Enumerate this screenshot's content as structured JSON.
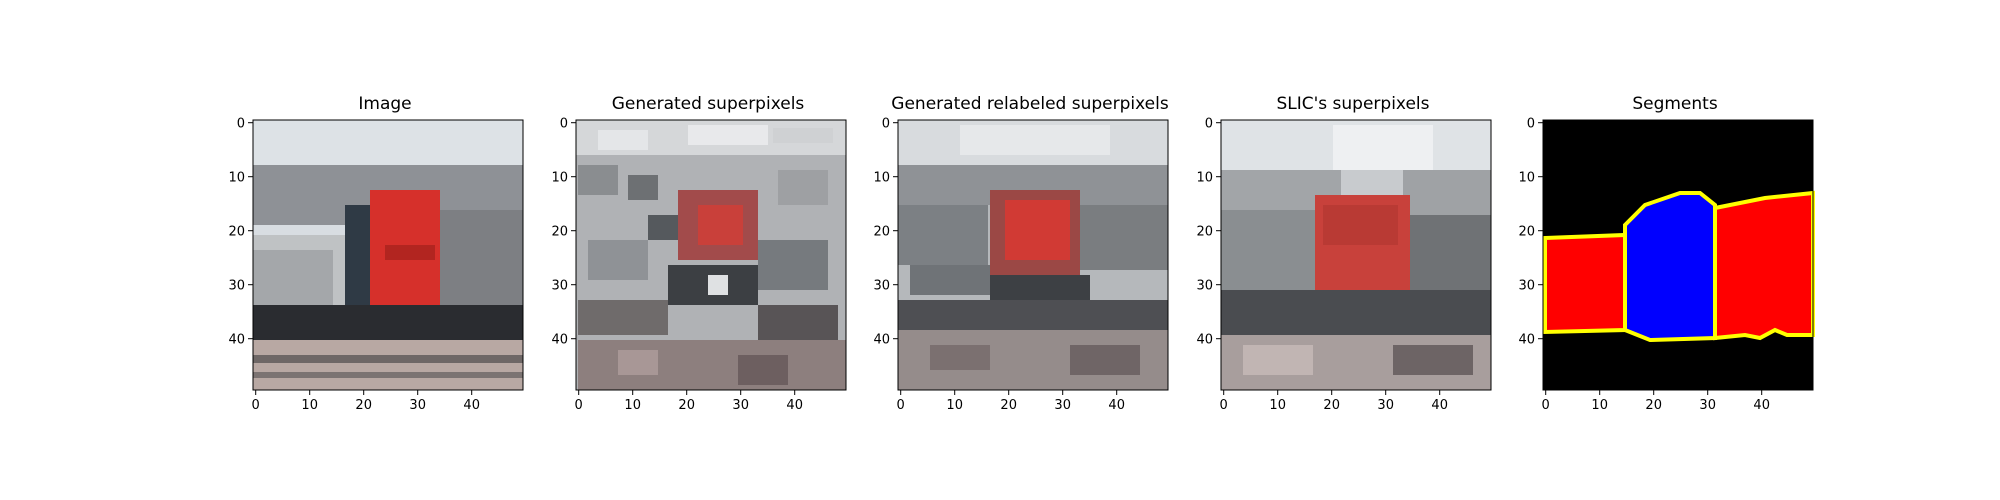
{
  "figure": {
    "axes": {
      "x_ticks": [
        "0",
        "10",
        "20",
        "30",
        "40"
      ],
      "y_ticks": [
        "0",
        "10",
        "20",
        "30",
        "40"
      ],
      "range": [
        0,
        50
      ]
    },
    "panels": [
      {
        "id": "image",
        "title": "Image",
        "content": "photo of red locomotive (pixelated 50x50)"
      },
      {
        "id": "generated",
        "title": "Generated superpixels",
        "content": "noisy superpixel mosaic"
      },
      {
        "id": "relabeled",
        "title": "Generated relabeled superpixels",
        "content": "smoothed superpixel mosaic"
      },
      {
        "id": "slic",
        "title": "SLIC's superpixels",
        "content": "SLIC segmentation mosaic"
      },
      {
        "id": "segments",
        "title": "Segments",
        "content": "label map"
      }
    ],
    "colors": {
      "sky": "#d8dde2",
      "locomotive": "#d6302b",
      "segment_background": "#000000",
      "segment_left": "#ff0000",
      "segment_center": "#0000ff",
      "segment_right": "#ff0000",
      "segment_boundary": "#ffff00"
    }
  }
}
